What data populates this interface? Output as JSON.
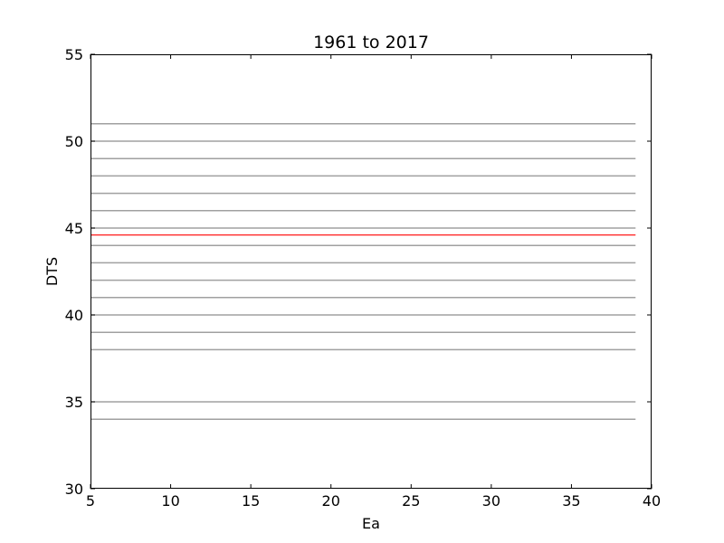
{
  "chart_data": {
    "type": "line",
    "title": "1961 to 2017",
    "xlabel": "Ea",
    "ylabel": "DTS",
    "xlim": [
      5,
      40
    ],
    "ylim": [
      30,
      55
    ],
    "xticks": [
      "5",
      "10",
      "15",
      "20",
      "25",
      "30",
      "35",
      "40"
    ],
    "yticks": [
      "30",
      "35",
      "40",
      "45",
      "50",
      "55"
    ],
    "grid": false,
    "x_range": [
      5,
      39
    ],
    "series": [
      {
        "values": [
          51.0,
          51.0
        ],
        "color": "#a0a0a0"
      },
      {
        "values": [
          50.0,
          50.0
        ],
        "color": "#a0a0a0"
      },
      {
        "values": [
          49.0,
          49.0
        ],
        "color": "#a0a0a0"
      },
      {
        "values": [
          48.0,
          48.0
        ],
        "color": "#a0a0a0"
      },
      {
        "values": [
          47.0,
          47.0
        ],
        "color": "#a0a0a0"
      },
      {
        "values": [
          46.0,
          46.0
        ],
        "color": "#a0a0a0"
      },
      {
        "values": [
          45.0,
          45.0
        ],
        "color": "#a0a0a0"
      },
      {
        "values": [
          44.0,
          44.0
        ],
        "color": "#a0a0a0"
      },
      {
        "values": [
          43.0,
          43.0
        ],
        "color": "#a0a0a0"
      },
      {
        "values": [
          42.0,
          42.0
        ],
        "color": "#a0a0a0"
      },
      {
        "values": [
          41.0,
          41.0
        ],
        "color": "#a0a0a0"
      },
      {
        "values": [
          40.0,
          40.0
        ],
        "color": "#a0a0a0"
      },
      {
        "values": [
          39.0,
          39.0
        ],
        "color": "#a0a0a0"
      },
      {
        "values": [
          38.0,
          38.0
        ],
        "color": "#a0a0a0"
      },
      {
        "values": [
          35.0,
          35.0
        ],
        "color": "#a0a0a0"
      },
      {
        "values": [
          34.0,
          34.0
        ],
        "color": "#a0a0a0"
      },
      {
        "values": [
          44.6,
          44.6
        ],
        "color": "#ff0000"
      }
    ]
  }
}
